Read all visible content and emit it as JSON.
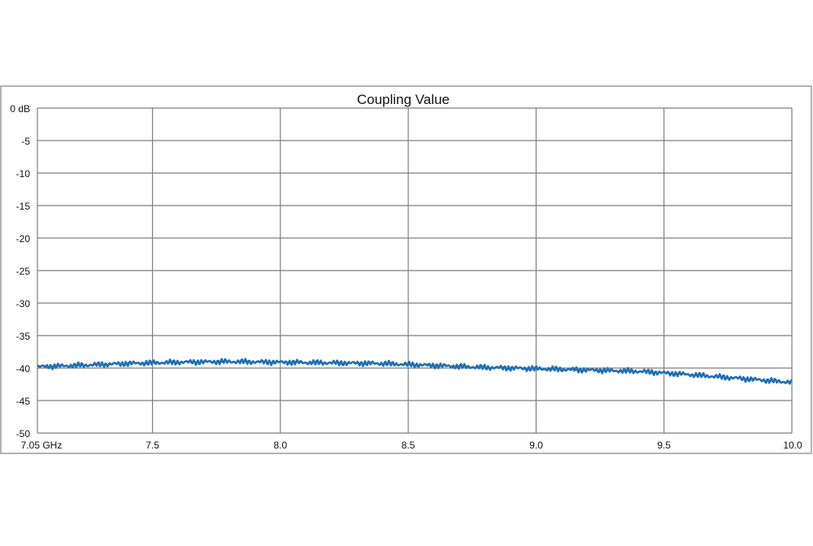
{
  "chart_data": {
    "type": "line",
    "title": "Coupling Value",
    "xlabel": "",
    "ylabel": "",
    "xlim": [
      7.05,
      10.0
    ],
    "ylim": [
      -50,
      0
    ],
    "x_ticks": [
      7.05,
      7.5,
      8.0,
      8.5,
      9.0,
      9.5,
      10.0
    ],
    "x_tick_labels": [
      "7.05 GHz",
      "7.5",
      "8.0",
      "8.5",
      "9.0",
      "9.5",
      "10.0"
    ],
    "y_ticks": [
      0,
      -5,
      -10,
      -15,
      -20,
      -25,
      -30,
      -35,
      -40,
      -45,
      -50
    ],
    "y_tick_labels": [
      "0 dB",
      "-5",
      "-10",
      "-15",
      "-20",
      "-25",
      "-30",
      "-35",
      "-40",
      "-45",
      "-50"
    ],
    "grid": true,
    "legend": "none",
    "series": [
      {
        "color": "#1f6fb4",
        "x": [
          7.05,
          7.2,
          7.4,
          7.6,
          7.8,
          8.0,
          8.2,
          8.4,
          8.6,
          8.8,
          9.0,
          9.2,
          9.4,
          9.6,
          9.8,
          10.0
        ],
        "values": [
          -39.8,
          -39.6,
          -39.3,
          -39.1,
          -39.0,
          -39.1,
          -39.2,
          -39.3,
          -39.6,
          -39.9,
          -40.1,
          -40.3,
          -40.5,
          -41.0,
          -41.6,
          -42.2
        ]
      }
    ]
  }
}
